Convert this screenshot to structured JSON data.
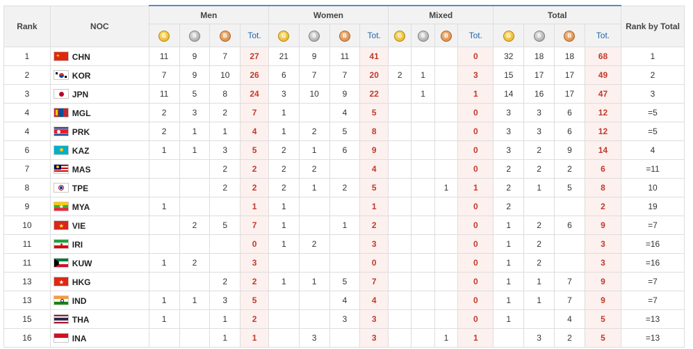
{
  "headers": {
    "rank": "Rank",
    "noc": "NOC",
    "groups": [
      "Men",
      "Women",
      "Mixed",
      "Total"
    ],
    "rank_by_total": "Rank by Total",
    "tot": "Tot.",
    "medal_icons": [
      "gold-medal-icon",
      "silver-medal-icon",
      "bronze-medal-icon"
    ]
  },
  "colors": {
    "total_cell_bg": "#fcf1ee",
    "total_text": "#c0392b",
    "header_bg": "#f2f2f2",
    "header_accent": "#5a88c4"
  },
  "rows": [
    {
      "rank": "1",
      "code": "CHN",
      "flag": "china-flag-icon",
      "men": [
        "11",
        "9",
        "7",
        "27"
      ],
      "women": [
        "21",
        "9",
        "11",
        "41"
      ],
      "mixed": [
        "",
        "",
        "",
        "0"
      ],
      "total": [
        "32",
        "18",
        "18",
        "68"
      ],
      "rbt": "1"
    },
    {
      "rank": "2",
      "code": "KOR",
      "flag": "south-korea-flag-icon",
      "men": [
        "7",
        "9",
        "10",
        "26"
      ],
      "women": [
        "6",
        "7",
        "7",
        "20"
      ],
      "mixed": [
        "2",
        "1",
        "",
        "3"
      ],
      "total": [
        "15",
        "17",
        "17",
        "49"
      ],
      "rbt": "2"
    },
    {
      "rank": "3",
      "code": "JPN",
      "flag": "japan-flag-icon",
      "men": [
        "11",
        "5",
        "8",
        "24"
      ],
      "women": [
        "3",
        "10",
        "9",
        "22"
      ],
      "mixed": [
        "",
        "1",
        "",
        "1"
      ],
      "total": [
        "14",
        "16",
        "17",
        "47"
      ],
      "rbt": "3"
    },
    {
      "rank": "4",
      "code": "MGL",
      "flag": "mongolia-flag-icon",
      "men": [
        "2",
        "3",
        "2",
        "7"
      ],
      "women": [
        "1",
        "",
        "4",
        "5"
      ],
      "mixed": [
        "",
        "",
        "",
        "0"
      ],
      "total": [
        "3",
        "3",
        "6",
        "12"
      ],
      "rbt": "=5"
    },
    {
      "rank": "4",
      "code": "PRK",
      "flag": "north-korea-flag-icon",
      "men": [
        "2",
        "1",
        "1",
        "4"
      ],
      "women": [
        "1",
        "2",
        "5",
        "8"
      ],
      "mixed": [
        "",
        "",
        "",
        "0"
      ],
      "total": [
        "3",
        "3",
        "6",
        "12"
      ],
      "rbt": "=5"
    },
    {
      "rank": "6",
      "code": "KAZ",
      "flag": "kazakhstan-flag-icon",
      "men": [
        "1",
        "1",
        "3",
        "5"
      ],
      "women": [
        "2",
        "1",
        "6",
        "9"
      ],
      "mixed": [
        "",
        "",
        "",
        "0"
      ],
      "total": [
        "3",
        "2",
        "9",
        "14"
      ],
      "rbt": "4"
    },
    {
      "rank": "7",
      "code": "MAS",
      "flag": "malaysia-flag-icon",
      "men": [
        "",
        "",
        "2",
        "2"
      ],
      "women": [
        "2",
        "2",
        "",
        "4"
      ],
      "mixed": [
        "",
        "",
        "",
        "0"
      ],
      "total": [
        "2",
        "2",
        "2",
        "6"
      ],
      "rbt": "=11"
    },
    {
      "rank": "8",
      "code": "TPE",
      "flag": "chinese-taipei-flag-icon",
      "men": [
        "",
        "",
        "2",
        "2"
      ],
      "women": [
        "2",
        "1",
        "2",
        "5"
      ],
      "mixed": [
        "",
        "",
        "1",
        "1"
      ],
      "total": [
        "2",
        "1",
        "5",
        "8"
      ],
      "rbt": "10"
    },
    {
      "rank": "9",
      "code": "MYA",
      "flag": "myanmar-flag-icon",
      "men": [
        "1",
        "",
        "",
        "1"
      ],
      "women": [
        "1",
        "",
        "",
        "1"
      ],
      "mixed": [
        "",
        "",
        "",
        "0"
      ],
      "total": [
        "2",
        "",
        "",
        "2"
      ],
      "rbt": "19"
    },
    {
      "rank": "10",
      "code": "VIE",
      "flag": "vietnam-flag-icon",
      "men": [
        "",
        "2",
        "5",
        "7"
      ],
      "women": [
        "1",
        "",
        "1",
        "2"
      ],
      "mixed": [
        "",
        "",
        "",
        "0"
      ],
      "total": [
        "1",
        "2",
        "6",
        "9"
      ],
      "rbt": "=7"
    },
    {
      "rank": "11",
      "code": "IRI",
      "flag": "iran-flag-icon",
      "men": [
        "",
        "",
        "",
        "0"
      ],
      "women": [
        "1",
        "2",
        "",
        "3"
      ],
      "mixed": [
        "",
        "",
        "",
        "0"
      ],
      "total": [
        "1",
        "2",
        "",
        "3"
      ],
      "rbt": "=16"
    },
    {
      "rank": "11",
      "code": "KUW",
      "flag": "kuwait-flag-icon",
      "men": [
        "1",
        "2",
        "",
        "3"
      ],
      "women": [
        "",
        "",
        "",
        "0"
      ],
      "mixed": [
        "",
        "",
        "",
        "0"
      ],
      "total": [
        "1",
        "2",
        "",
        "3"
      ],
      "rbt": "=16"
    },
    {
      "rank": "13",
      "code": "HKG",
      "flag": "hong-kong-flag-icon",
      "men": [
        "",
        "",
        "2",
        "2"
      ],
      "women": [
        "1",
        "1",
        "5",
        "7"
      ],
      "mixed": [
        "",
        "",
        "",
        "0"
      ],
      "total": [
        "1",
        "1",
        "7",
        "9"
      ],
      "rbt": "=7"
    },
    {
      "rank": "13",
      "code": "IND",
      "flag": "india-flag-icon",
      "men": [
        "1",
        "1",
        "3",
        "5"
      ],
      "women": [
        "",
        "",
        "4",
        "4"
      ],
      "mixed": [
        "",
        "",
        "",
        "0"
      ],
      "total": [
        "1",
        "1",
        "7",
        "9"
      ],
      "rbt": "=7"
    },
    {
      "rank": "15",
      "code": "THA",
      "flag": "thailand-flag-icon",
      "men": [
        "1",
        "",
        "1",
        "2"
      ],
      "women": [
        "",
        "",
        "3",
        "3"
      ],
      "mixed": [
        "",
        "",
        "",
        "0"
      ],
      "total": [
        "1",
        "",
        "4",
        "5"
      ],
      "rbt": "=13"
    },
    {
      "rank": "16",
      "code": "INA",
      "flag": "indonesia-flag-icon",
      "men": [
        "",
        "",
        "1",
        "1"
      ],
      "women": [
        "",
        "3",
        "",
        "3"
      ],
      "mixed": [
        "",
        "",
        "1",
        "1"
      ],
      "total": [
        "",
        "3",
        "2",
        "5"
      ],
      "rbt": "=13"
    }
  ]
}
